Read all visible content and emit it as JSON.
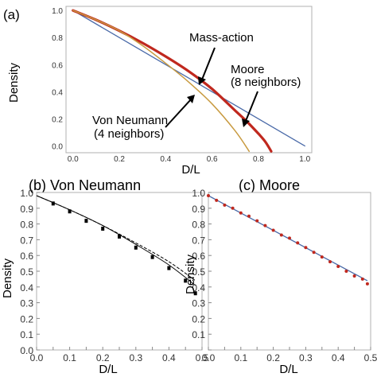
{
  "colors": {
    "mass_action": "#4a6aa8",
    "moore_red": "#c0281e",
    "von_neumann_gold": "#c89a40",
    "black": "#000000",
    "frame": "#b0b0b0"
  },
  "chart_data": [
    {
      "id": "a",
      "type": "line",
      "panel_label": "(a)",
      "xlabel": "D/L",
      "ylabel": "Density",
      "xlim": [
        -0.03,
        1.03
      ],
      "ylim": [
        -0.05,
        1.03
      ],
      "xticks": [
        0.0,
        0.2,
        0.4,
        0.6,
        0.8,
        1.0
      ],
      "yticks": [
        0.0,
        0.2,
        0.4,
        0.6,
        0.8,
        1.0
      ],
      "xtick_labels": [
        "0.0",
        "0.2",
        "0.4",
        "0.6",
        "0.8",
        "1.0"
      ],
      "ytick_labels": [
        "0.0",
        "0.2",
        "0.4",
        "0.6",
        "0.8",
        "1.0"
      ],
      "grid": false,
      "series": [
        {
          "key": "mass_action",
          "x": [
            0.0,
            1.0
          ],
          "y": [
            1.0,
            0.0
          ]
        },
        {
          "key": "moore",
          "x": [
            0.0,
            0.1,
            0.2,
            0.3,
            0.4,
            0.5,
            0.6,
            0.7,
            0.75,
            0.8,
            0.83,
            0.855
          ],
          "y": [
            1.0,
            0.93,
            0.85,
            0.76,
            0.66,
            0.55,
            0.42,
            0.26,
            0.18,
            0.09,
            0.03,
            -0.04
          ]
        },
        {
          "key": "von_neumann",
          "x": [
            0.0,
            0.1,
            0.2,
            0.3,
            0.4,
            0.5,
            0.6,
            0.7,
            0.76
          ],
          "y": [
            1.0,
            0.93,
            0.85,
            0.74,
            0.61,
            0.47,
            0.31,
            0.11,
            -0.04
          ]
        }
      ],
      "annotations": {
        "mass_action": [
          "Mass-action"
        ],
        "moore": [
          "Moore",
          "(8 neighbors)"
        ],
        "von_neumann": [
          "Von Neumann",
          "(4 neighbors)"
        ]
      }
    },
    {
      "id": "b",
      "type": "scatter",
      "panel_label": "(b) Von Neumann",
      "xlabel": "D/L",
      "ylabel": "Density",
      "xlim": [
        0.0,
        0.5
      ],
      "ylim": [
        0.0,
        1.0
      ],
      "xticks": [
        0.0,
        0.05,
        0.1,
        0.15,
        0.2,
        0.25,
        0.3,
        0.35,
        0.4,
        0.45,
        0.5
      ],
      "yticks": [
        0.0,
        0.1,
        0.2,
        0.3,
        0.4,
        0.5,
        0.6,
        0.7,
        0.8,
        0.9,
        1.0
      ],
      "xtick_labels": [
        "0.0",
        "",
        "0.1",
        "",
        "0.2",
        "",
        "0.3",
        "",
        "0.4",
        "",
        "0.5"
      ],
      "ytick_labels": [
        "0.0",
        "0.1",
        "0.2",
        "0.3",
        "0.4",
        "0.5",
        "0.6",
        "0.7",
        "0.8",
        "0.9",
        "1.0"
      ],
      "grid": false,
      "points": {
        "x": [
          0.05,
          0.1,
          0.15,
          0.2,
          0.25,
          0.3,
          0.35,
          0.4,
          0.45,
          0.48
        ],
        "y": [
          0.93,
          0.88,
          0.82,
          0.77,
          0.72,
          0.65,
          0.59,
          0.52,
          0.44,
          0.36
        ]
      },
      "lines": [
        {
          "key": "solid",
          "x": [
            0.0,
            0.1,
            0.2,
            0.3,
            0.4,
            0.48
          ],
          "y": [
            0.98,
            0.89,
            0.79,
            0.67,
            0.54,
            0.41
          ]
        },
        {
          "key": "dashed",
          "x": [
            0.0,
            0.1,
            0.2,
            0.3,
            0.4,
            0.48
          ],
          "y": [
            0.98,
            0.89,
            0.79,
            0.68,
            0.56,
            0.44
          ]
        }
      ]
    },
    {
      "id": "c",
      "type": "scatter",
      "panel_label": "(c) Moore",
      "xlabel": "D/L",
      "ylabel": "Density",
      "xlim": [
        0.0,
        0.5
      ],
      "ylim": [
        0.0,
        1.0
      ],
      "xticks": [
        0.0,
        0.05,
        0.1,
        0.15,
        0.2,
        0.25,
        0.3,
        0.35,
        0.4,
        0.45,
        0.5
      ],
      "yticks": [
        0.0,
        0.1,
        0.2,
        0.3,
        0.4,
        0.5,
        0.6,
        0.7,
        0.8,
        0.9,
        1.0
      ],
      "xtick_labels": [
        "0.0",
        "",
        "0.1",
        "",
        "0.2",
        "",
        "0.3",
        "",
        "0.4",
        "",
        "0.5"
      ],
      "ytick_labels": [
        "",
        "0.1",
        "0.2",
        "0.3",
        "0.4",
        "0.5",
        "0.6",
        "0.7",
        "0.8",
        "0.9",
        "1.0"
      ],
      "grid": false,
      "points": {
        "x": [
          0.0,
          0.025,
          0.05,
          0.075,
          0.1,
          0.125,
          0.15,
          0.175,
          0.2,
          0.225,
          0.25,
          0.275,
          0.3,
          0.325,
          0.35,
          0.375,
          0.4,
          0.425,
          0.45,
          0.475,
          0.49
        ],
        "y": [
          0.98,
          0.95,
          0.92,
          0.9,
          0.87,
          0.85,
          0.82,
          0.79,
          0.76,
          0.73,
          0.71,
          0.68,
          0.65,
          0.62,
          0.59,
          0.56,
          0.53,
          0.5,
          0.47,
          0.45,
          0.42
        ]
      },
      "lines": [
        {
          "key": "fit",
          "x": [
            0.0,
            0.49
          ],
          "y": [
            0.98,
            0.44
          ]
        }
      ]
    }
  ]
}
